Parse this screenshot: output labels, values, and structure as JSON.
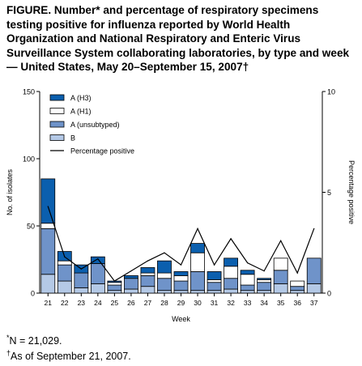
{
  "title": "FIGURE. Number* and percentage of respiratory specimens testing positive for influenza reported by World Health Organization and National Respiratory and Enteric Virus Surveillance System collaborating laboratories, by type and week — United States, May 20–September 15, 2007†",
  "footnotes": [
    {
      "mark": "*",
      "text": "N = 21,029."
    },
    {
      "mark": "†",
      "text": "As of September 21, 2007."
    }
  ],
  "colors": {
    "h3": "#0b5fae",
    "h1": "#ffffff",
    "unsubtyped": "#6f93c9",
    "b": "#b4c9e6",
    "line": "#000000",
    "outline": "#000000"
  },
  "chart_data": {
    "type": "bar",
    "stacked": true,
    "xlabel": "Week",
    "ylabel": "No. of isolates",
    "y2label": "Percentage positive",
    "ylim": [
      0,
      150
    ],
    "yticks": [
      0,
      50,
      100,
      150
    ],
    "y2lim": [
      0,
      10
    ],
    "y2ticks": [
      0,
      5,
      10
    ],
    "legend_position": "top-left",
    "categories": [
      "21",
      "22",
      "23",
      "24",
      "25",
      "26",
      "27",
      "28",
      "29",
      "30",
      "31",
      "32",
      "33",
      "34",
      "35",
      "36",
      "37"
    ],
    "series": [
      {
        "name": "B",
        "key": "b",
        "values": [
          14,
          9,
          4,
          7,
          2,
          3,
          5,
          2,
          2,
          2,
          2,
          3,
          2,
          2,
          7,
          2,
          7
        ]
      },
      {
        "name": "A (unsubtyped)",
        "key": "unsubtyped",
        "values": [
          34,
          12,
          11,
          15,
          4,
          8,
          8,
          9,
          7,
          14,
          6,
          8,
          4,
          6,
          10,
          3,
          19
        ]
      },
      {
        "name": "A (H1)",
        "key": "h1",
        "values": [
          4,
          3,
          0,
          0,
          2,
          0,
          2,
          4,
          4,
          14,
          2,
          9,
          8,
          2,
          9,
          4,
          0
        ]
      },
      {
        "name": "A (H3)",
        "key": "h3",
        "values": [
          33,
          7,
          6,
          5,
          1,
          2,
          4,
          9,
          3,
          7,
          6,
          6,
          3,
          1,
          0,
          0,
          0
        ]
      }
    ],
    "line_series": {
      "name": "Percentage positive",
      "axis": "right",
      "values": [
        4.3,
        1.8,
        1.2,
        1.7,
        0.6,
        1.1,
        1.6,
        2.0,
        1.4,
        3.2,
        1.4,
        2.7,
        1.5,
        1.1,
        2.6,
        1.0,
        3.2
      ]
    }
  }
}
